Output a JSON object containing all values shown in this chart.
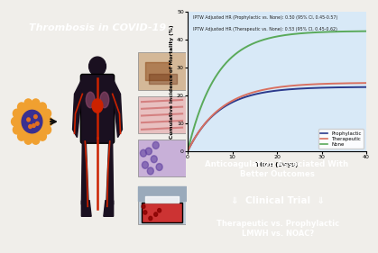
{
  "title_left": "Thrombosis in COVID-19",
  "title_bg": "#c9433a",
  "title_color": "#ffffff",
  "annotation1": "IPTW Adjusted HR (Prophylactic vs. None): 0.50 (95% CI, 0.45-0.57)",
  "annotation2": "IPTW Adjusted HR (Therapeutic vs. None): 0.53 (95% CI, 0.45-0.62)",
  "xlabel": "Time (Days)",
  "ylabel": "Cumulative Incidence of Mortality (%)",
  "xlim": [
    0,
    40
  ],
  "ylim": [
    0,
    50
  ],
  "xticks": [
    0,
    10,
    20,
    30,
    40
  ],
  "yticks": [
    0,
    10,
    20,
    30,
    40,
    50
  ],
  "chart_bg": "#d8e9f7",
  "line_prophylactic_color": "#2b3a8c",
  "line_therapeutic_color": "#d97060",
  "line_none_color": "#5aaa5a",
  "legend_labels": [
    "Prophylactic",
    "Therapeutic",
    "None"
  ],
  "box1_text": "Anticoagulation Associated With\nBetter Outcomes",
  "box1_bg": "#c9433a",
  "box1_color": "#ffffff",
  "box2_text": "⇓  Clinical Trial  ⇓",
  "box2_bg": "#3a78bf",
  "box2_color": "#ffffff",
  "box3_text": "Therapeutic vs. Prophylactic\nLMWH vs. NOAC?",
  "box3_bg": "#5aaad5",
  "box3_color": "#ffffff",
  "bg_color": "#f0eeea",
  "virus_outer": "#f0a030",
  "virus_inner": "#3a3090",
  "body_color": "#1a1020",
  "artery_color": "#cc2200",
  "vein_color": "#2255aa",
  "img1_color": "#d4b898",
  "img2_color": "#cc8888",
  "img3_color": "#9070a0",
  "img4_bg": "#b8c8d8",
  "img4_clot": "#cc3333"
}
